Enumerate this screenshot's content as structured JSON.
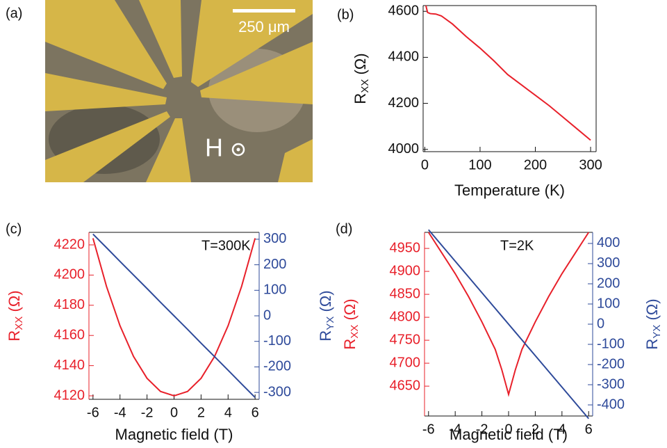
{
  "chart_data": [
    {
      "type": "image",
      "label": "(a)",
      "scale_bar": "250 μm",
      "annotation": "H"
    },
    {
      "type": "line",
      "label": "(b)",
      "xlabel": "Temperature (K)",
      "ylabel": [
        "R",
        "XX",
        " (Ω)"
      ],
      "x": [
        2,
        5,
        10,
        20,
        30,
        50,
        75,
        100,
        125,
        150,
        175,
        200,
        225,
        250,
        275,
        300
      ],
      "series": [
        {
          "color": "#e8202a",
          "values": [
            4625,
            4595,
            4590,
            4588,
            4580,
            4545,
            4490,
            4440,
            4385,
            4325,
            4280,
            4235,
            4190,
            4140,
            4090,
            4040
          ]
        }
      ],
      "xlim": [
        -3,
        310
      ],
      "ylim": [
        3990,
        4625
      ],
      "xticks": [
        0,
        100,
        200,
        300
      ],
      "yticks": [
        4000,
        4200,
        4400,
        4600
      ]
    },
    {
      "type": "line",
      "label": "(c)",
      "annotation": "T=300K",
      "xlabel": "Magnetic field (T)",
      "ylabel": [
        "R",
        "XX",
        " (Ω)"
      ],
      "y2label": [
        "R",
        "YX",
        " (Ω)"
      ],
      "x": [
        -6,
        -5,
        -4,
        -3,
        -2,
        -1,
        0,
        1,
        2,
        3,
        4,
        5,
        6
      ],
      "series": [
        {
          "color": "#e8202a",
          "values": [
            4224.4,
            4192.5,
            4166.4,
            4146.1,
            4131.6,
            4122.9,
            4120,
            4122.9,
            4131.6,
            4146.1,
            4166.4,
            4192.5,
            4224.4
          ]
        },
        {
          "color": "#2e4a9a",
          "axis": "y2",
          "values": [
            320,
            267,
            213,
            160,
            107,
            53,
            0,
            -53,
            -107,
            -160,
            -213,
            -267,
            -320
          ]
        }
      ],
      "xlim": [
        -6.3,
        6.3
      ],
      "ylim": [
        4117.7,
        4228.3
      ],
      "y2lim": [
        -327,
        327
      ],
      "xticks": [
        -6,
        -4,
        -2,
        0,
        2,
        4,
        6
      ],
      "yticks": [
        4120,
        4140,
        4160,
        4180,
        4200,
        4220
      ],
      "y2ticks": [
        -300,
        -200,
        -100,
        0,
        100,
        200,
        300
      ]
    },
    {
      "type": "line",
      "label": "(d)",
      "annotation": "T=2K",
      "xlabel": "Magnetic field (T)",
      "ylabel": [
        "R",
        "XX",
        " (Ω)"
      ],
      "y2label": [
        "R",
        "YX",
        " (Ω)"
      ],
      "x": [
        -6,
        -5,
        -4,
        -3,
        -2,
        -1,
        -0.5,
        0,
        0.5,
        1,
        2,
        3,
        4,
        5,
        6
      ],
      "series": [
        {
          "color": "#e8202a",
          "values": [
            4985,
            4940,
            4895,
            4845,
            4790,
            4730,
            4685,
            4632,
            4685,
            4730,
            4790,
            4845,
            4895,
            4940,
            4985
          ]
        },
        {
          "color": "#2e4a9a",
          "axis": "y2",
          "values": [
            468,
            390,
            312,
            234,
            156,
            78,
            39,
            0,
            -39,
            -78,
            -156,
            -234,
            -312,
            -390,
            -468
          ]
        }
      ],
      "xlim": [
        -6.3,
        6.3
      ],
      "ylim": [
        4585,
        4985
      ],
      "y2lim": [
        -455,
        455
      ],
      "xticks": [
        -6,
        -4,
        -2,
        0,
        2,
        4,
        6
      ],
      "yticks": [
        4650,
        4700,
        4750,
        4800,
        4850,
        4900,
        4950
      ],
      "y2ticks": [
        -400,
        -300,
        -200,
        -100,
        0,
        100,
        200,
        300,
        400
      ]
    }
  ]
}
